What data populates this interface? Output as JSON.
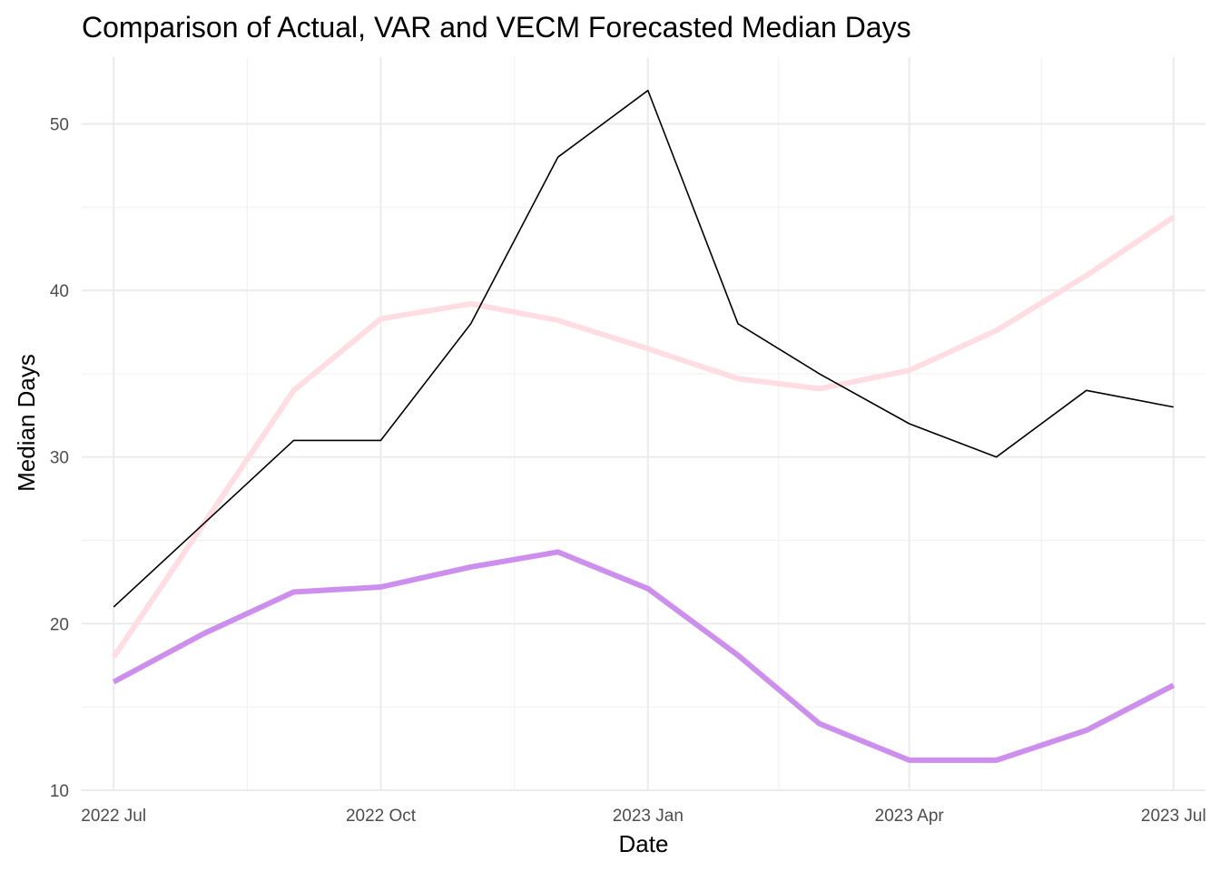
{
  "chart_data": {
    "type": "line",
    "title": "Comparison of Actual, VAR and VECM Forecasted Median Days",
    "xlabel": "Date",
    "ylabel": "Median Days",
    "x": [
      "2022-07-01",
      "2022-08-01",
      "2022-09-01",
      "2022-10-01",
      "2022-11-01",
      "2022-12-01",
      "2023-01-01",
      "2023-02-01",
      "2023-03-01",
      "2023-04-01",
      "2023-05-01",
      "2023-06-01",
      "2023-07-01"
    ],
    "x_ticks": [
      {
        "date": "2022-07-01",
        "label": "2022 Jul"
      },
      {
        "date": "2022-10-01",
        "label": "2022 Oct"
      },
      {
        "date": "2023-01-01",
        "label": "2023 Jan"
      },
      {
        "date": "2023-04-01",
        "label": "2023 Apr"
      },
      {
        "date": "2023-07-01",
        "label": "2023 Jul"
      }
    ],
    "xlim": [
      "2022-06-20",
      "2023-07-12"
    ],
    "y_ticks": [
      10,
      20,
      30,
      40,
      50
    ],
    "ylim": [
      10,
      54
    ],
    "grid": true,
    "legend": "none",
    "series": [
      {
        "color": "#FFDDE3",
        "values": [
          18.0,
          26.0,
          34.0,
          38.3,
          39.2,
          38.2,
          36.5,
          34.7,
          34.1,
          35.2,
          37.6,
          40.9,
          44.4
        ]
      },
      {
        "color": "#CC8FEE",
        "values": [
          16.5,
          19.4,
          21.9,
          22.2,
          23.4,
          24.3,
          22.1,
          18.1,
          14.0,
          11.8,
          11.8,
          13.6,
          16.3
        ]
      },
      {
        "color": "#000000",
        "values": [
          21,
          26,
          31,
          31,
          38,
          48,
          52,
          38,
          35,
          32,
          30,
          34,
          33
        ]
      }
    ]
  }
}
